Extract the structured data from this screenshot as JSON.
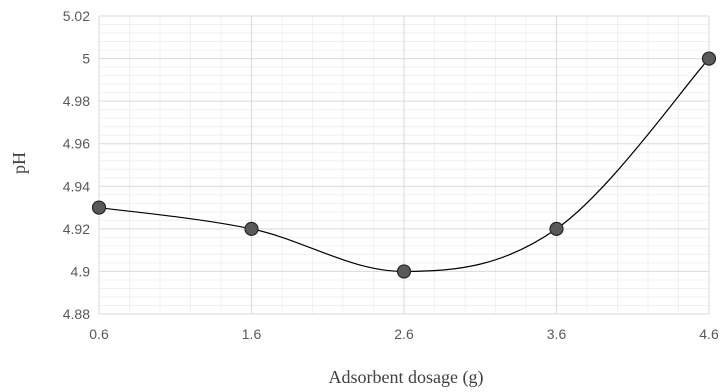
{
  "chart_data": {
    "type": "line",
    "smooth": true,
    "title": "",
    "xlabel": "Adsorbent dosage (g)",
    "ylabel": "pH",
    "x": [
      0.6,
      1.6,
      2.6,
      3.6,
      4.6
    ],
    "series": [
      {
        "values": [
          4.93,
          4.92,
          4.9,
          4.92,
          5.0
        ]
      }
    ],
    "x_ticks": [
      "0.6",
      "1.6",
      "2.6",
      "3.6",
      "4.6"
    ],
    "y_ticks": [
      "4.88",
      "4.9",
      "4.92",
      "4.94",
      "4.96",
      "4.98",
      "5",
      "5.02"
    ],
    "xlim": [
      0.6,
      4.6
    ],
    "ylim": [
      4.88,
      5.02
    ],
    "grid": true,
    "minor_grid": true,
    "legend": "none",
    "colors": {
      "line": "#000000",
      "marker_fill": "#595959",
      "marker_stroke": "#262626",
      "major_grid": "#d9d9d9",
      "minor_grid": "#f0f0f0"
    }
  }
}
